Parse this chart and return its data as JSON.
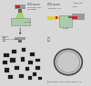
{
  "bg_color": "#d8d8d8",
  "panel_bg": "#e8e8e8",
  "device_gray": "#999999",
  "device_dark": "#666666",
  "red_color": "#cc2222",
  "green_beam": "#88cc44",
  "yellow_beam": "#ddbb22",
  "screen_green": "#aaccaa",
  "screen_border": "#888888",
  "dark_bubble_bg": "#505050",
  "dark_bubble_color": "#1a1a1a",
  "light_bubble_bg": "#aaaaaa",
  "light_bubble_fill": "#d8d8d8",
  "light_bubble_ring": "#444444",
  "text_color": "#333333",
  "text_light": "#cccccc",
  "line_color": "#555555"
}
